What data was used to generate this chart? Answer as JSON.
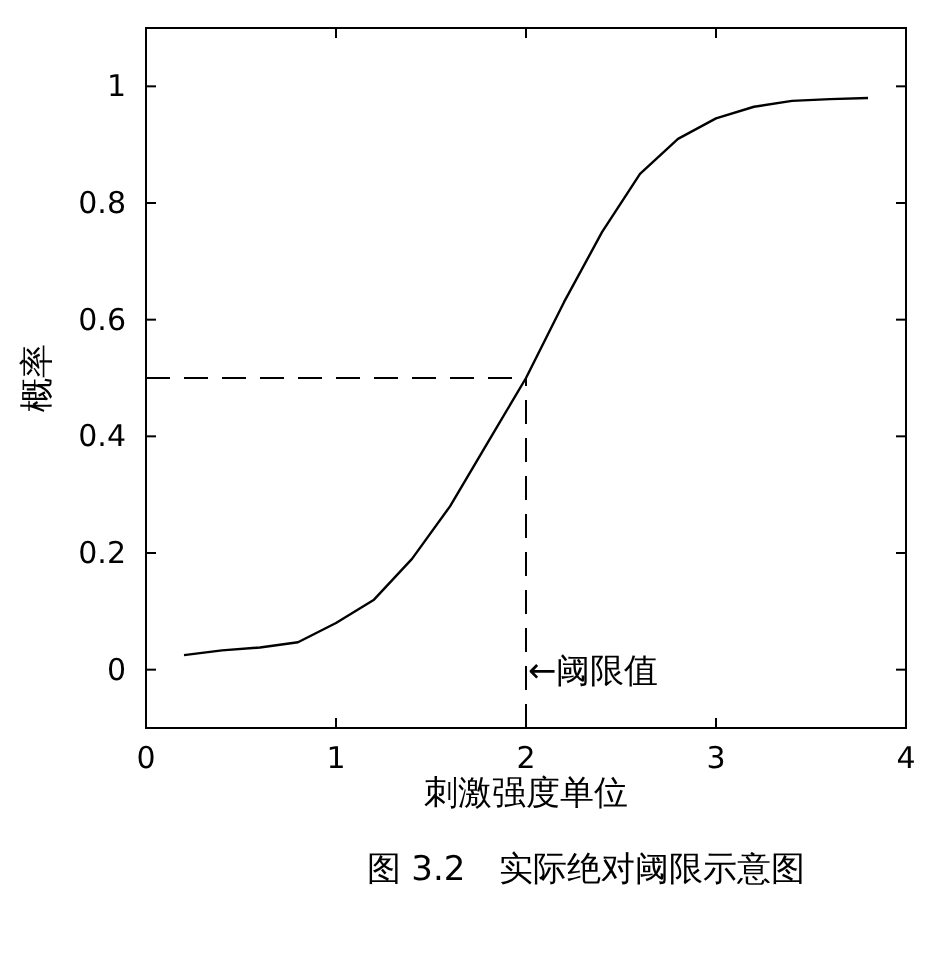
{
  "chart_data": {
    "type": "line",
    "xlabel": "刺激强度单位",
    "ylabel": "概率",
    "x": [
      0.2,
      0.4,
      0.6,
      0.8,
      1.0,
      1.2,
      1.4,
      1.6,
      1.8,
      2.0,
      2.2,
      2.4,
      2.6,
      2.8,
      3.0,
      3.2,
      3.4,
      3.6,
      3.8
    ],
    "series": [
      {
        "color": "#000000",
        "values": [
          0.025,
          0.033,
          0.038,
          0.047,
          0.08,
          0.12,
          0.19,
          0.28,
          0.39,
          0.5,
          0.63,
          0.75,
          0.85,
          0.91,
          0.945,
          0.965,
          0.975,
          0.978,
          0.98
        ]
      }
    ],
    "xlim": [
      0,
      4
    ],
    "ylim": [
      -0.1,
      1.1
    ],
    "xticks": [
      0,
      1,
      2,
      3,
      4
    ],
    "yticks": [
      0,
      0.2,
      0.4,
      0.6,
      0.8,
      1
    ],
    "ref_lines": [
      {
        "axis": "y",
        "value": 0.5,
        "line_style": "dashed",
        "color": "#000000"
      },
      {
        "axis": "x",
        "value": 2,
        "line_style": "dashed",
        "color": "#000000"
      }
    ],
    "annotations": [
      {
        "text": "←阈限值",
        "x": 2,
        "y": 0
      },
      "图 3.2　实际绝对阈限示意图"
    ],
    "marker": "none",
    "line_style": "solid"
  }
}
